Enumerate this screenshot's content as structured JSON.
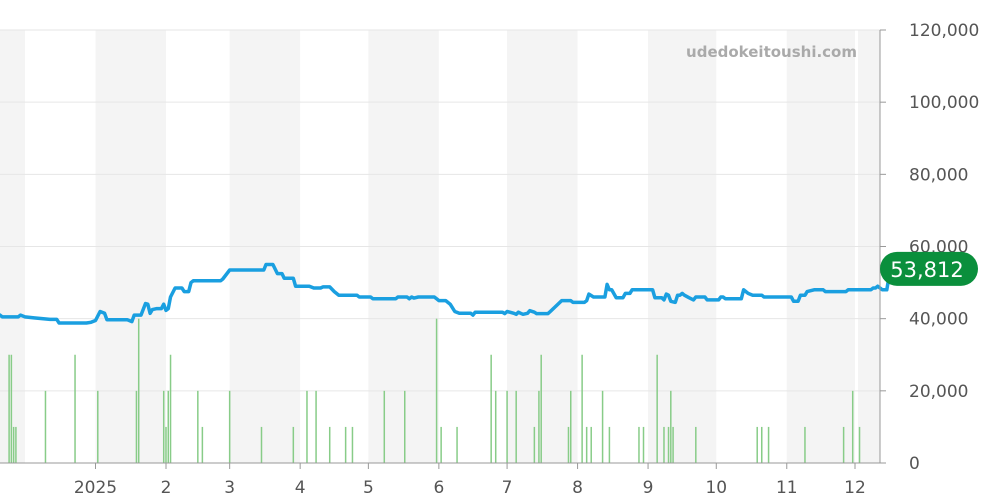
{
  "watermark": "udedokeitoushi.com",
  "current_value_label": "53,812",
  "colors": {
    "price_line": "#1a9fe0",
    "volume_bars": "#88cc88",
    "badge": "#0a8f3c",
    "band": "#f4f4f4",
    "grid": "#e6e6e6"
  },
  "chart_data": {
    "type": "line",
    "title": "",
    "xlabel": "",
    "ylabel": "",
    "ylim": [
      0,
      120000
    ],
    "yticks": [
      0,
      20000,
      40000,
      60000,
      80000,
      100000,
      120000
    ],
    "ytick_labels": [
      "0",
      "20,000",
      "40,000",
      "60,000",
      "80,000",
      "100,000",
      "120,000"
    ],
    "y_axis_position": "right",
    "grid": true,
    "xlim": [
      "2024-11-20",
      "2025-12-12"
    ],
    "x_ticks": [
      {
        "date": "2025-01-01",
        "label": "2025"
      },
      {
        "date": "2025-02-01",
        "label": "2"
      },
      {
        "date": "2025-03-01",
        "label": "3"
      },
      {
        "date": "2025-04-01",
        "label": "4"
      },
      {
        "date": "2025-05-01",
        "label": "5"
      },
      {
        "date": "2025-06-01",
        "label": "6"
      },
      {
        "date": "2025-07-01",
        "label": "7"
      },
      {
        "date": "2025-08-01",
        "label": "8"
      },
      {
        "date": "2025-09-01",
        "label": "9"
      },
      {
        "date": "2025-10-01",
        "label": "10"
      },
      {
        "date": "2025-11-01",
        "label": "11"
      },
      {
        "date": "2025-12-01",
        "label": "12"
      }
    ],
    "current_value": 53812,
    "series": [
      {
        "kind": "line",
        "points": [
          [
            "2024-11-20",
            41000
          ],
          [
            "2024-11-21",
            40500
          ],
          [
            "2024-11-28",
            40500
          ],
          [
            "2024-11-29",
            41000
          ],
          [
            "2024-12-01",
            40500
          ],
          [
            "2024-12-05",
            40200
          ],
          [
            "2024-12-12",
            39800
          ],
          [
            "2024-12-15",
            39800
          ],
          [
            "2024-12-16",
            38800
          ],
          [
            "2024-12-28",
            38800
          ],
          [
            "2024-12-30",
            39000
          ],
          [
            "2025-01-01",
            39500
          ],
          [
            "2025-01-03",
            42000
          ],
          [
            "2025-01-05",
            41500
          ],
          [
            "2025-01-06",
            39700
          ],
          [
            "2025-01-15",
            39700
          ],
          [
            "2025-01-17",
            39200
          ],
          [
            "2025-01-18",
            41000
          ],
          [
            "2025-01-21",
            41000
          ],
          [
            "2025-01-23",
            44200
          ],
          [
            "2025-01-24",
            44000
          ],
          [
            "2025-01-25",
            41500
          ],
          [
            "2025-01-26",
            42500
          ],
          [
            "2025-01-28",
            42800
          ],
          [
            "2025-01-30",
            42800
          ],
          [
            "2025-01-31",
            44000
          ],
          [
            "2025-02-01",
            42300
          ],
          [
            "2025-02-02",
            42800
          ],
          [
            "2025-02-03",
            46000
          ],
          [
            "2025-02-05",
            48500
          ],
          [
            "2025-02-08",
            48500
          ],
          [
            "2025-02-09",
            47500
          ],
          [
            "2025-02-11",
            47500
          ],
          [
            "2025-02-12",
            50000
          ],
          [
            "2025-02-13",
            50500
          ],
          [
            "2025-02-25",
            50500
          ],
          [
            "2025-02-26",
            51000
          ],
          [
            "2025-03-01",
            53500
          ],
          [
            "2025-03-16",
            53500
          ],
          [
            "2025-03-17",
            55000
          ],
          [
            "2025-03-20",
            55000
          ],
          [
            "2025-03-22",
            52500
          ],
          [
            "2025-03-24",
            52500
          ],
          [
            "2025-03-25",
            51200
          ],
          [
            "2025-03-29",
            51200
          ],
          [
            "2025-03-30",
            49000
          ],
          [
            "2025-04-05",
            49000
          ],
          [
            "2025-04-07",
            48500
          ],
          [
            "2025-04-10",
            48500
          ],
          [
            "2025-04-11",
            48800
          ],
          [
            "2025-04-14",
            48800
          ],
          [
            "2025-04-16",
            47500
          ],
          [
            "2025-04-18",
            46500
          ],
          [
            "2025-04-26",
            46500
          ],
          [
            "2025-04-27",
            46000
          ],
          [
            "2025-05-02",
            46000
          ],
          [
            "2025-05-03",
            45500
          ],
          [
            "2025-05-13",
            45500
          ],
          [
            "2025-05-14",
            46000
          ],
          [
            "2025-05-18",
            46000
          ],
          [
            "2025-05-19",
            45500
          ],
          [
            "2025-05-20",
            46000
          ],
          [
            "2025-05-21",
            45700
          ],
          [
            "2025-05-23",
            46000
          ],
          [
            "2025-05-30",
            46000
          ],
          [
            "2025-05-31",
            45500
          ],
          [
            "2025-06-01",
            45000
          ],
          [
            "2025-06-04",
            45000
          ],
          [
            "2025-06-06",
            44000
          ],
          [
            "2025-06-08",
            42000
          ],
          [
            "2025-06-10",
            41500
          ],
          [
            "2025-06-15",
            41500
          ],
          [
            "2025-06-16",
            41000
          ],
          [
            "2025-06-17",
            41800
          ],
          [
            "2025-06-29",
            41800
          ],
          [
            "2025-06-30",
            41400
          ],
          [
            "2025-07-01",
            42000
          ],
          [
            "2025-07-04",
            41500
          ],
          [
            "2025-07-05",
            41200
          ],
          [
            "2025-07-06",
            41800
          ],
          [
            "2025-07-07",
            41500
          ],
          [
            "2025-07-08",
            41200
          ],
          [
            "2025-07-10",
            41500
          ],
          [
            "2025-07-11",
            42200
          ],
          [
            "2025-07-13",
            41800
          ],
          [
            "2025-07-14",
            41400
          ],
          [
            "2025-07-19",
            41400
          ],
          [
            "2025-07-20",
            42000
          ],
          [
            "2025-07-25",
            45000
          ],
          [
            "2025-07-29",
            45000
          ],
          [
            "2025-07-30",
            44500
          ],
          [
            "2025-08-04",
            44500
          ],
          [
            "2025-08-05",
            45000
          ],
          [
            "2025-08-06",
            46800
          ],
          [
            "2025-08-08",
            46000
          ],
          [
            "2025-08-13",
            46000
          ],
          [
            "2025-08-14",
            49500
          ],
          [
            "2025-08-15",
            48000
          ],
          [
            "2025-08-16",
            48000
          ],
          [
            "2025-08-18",
            45800
          ],
          [
            "2025-08-21",
            45800
          ],
          [
            "2025-08-22",
            47000
          ],
          [
            "2025-08-24",
            47000
          ],
          [
            "2025-08-25",
            48000
          ],
          [
            "2025-09-03",
            48000
          ],
          [
            "2025-09-04",
            45800
          ],
          [
            "2025-09-07",
            45800
          ],
          [
            "2025-09-08",
            45200
          ],
          [
            "2025-09-09",
            46800
          ],
          [
            "2025-09-10",
            46500
          ],
          [
            "2025-09-11",
            44800
          ],
          [
            "2025-09-13",
            44500
          ],
          [
            "2025-09-14",
            46500
          ],
          [
            "2025-09-15",
            46500
          ],
          [
            "2025-09-16",
            47000
          ],
          [
            "2025-09-17",
            46500
          ],
          [
            "2025-09-19",
            45800
          ],
          [
            "2025-09-21",
            45200
          ],
          [
            "2025-09-22",
            46000
          ],
          [
            "2025-09-26",
            46000
          ],
          [
            "2025-09-27",
            45200
          ],
          [
            "2025-10-02",
            45200
          ],
          [
            "2025-10-03",
            46000
          ],
          [
            "2025-10-04",
            46000
          ],
          [
            "2025-10-05",
            45500
          ],
          [
            "2025-10-12",
            45500
          ],
          [
            "2025-10-13",
            48000
          ],
          [
            "2025-10-15",
            47000
          ],
          [
            "2025-10-17",
            46500
          ],
          [
            "2025-10-21",
            46500
          ],
          [
            "2025-10-22",
            46000
          ],
          [
            "2025-11-03",
            46000
          ],
          [
            "2025-11-04",
            44800
          ],
          [
            "2025-11-06",
            44800
          ],
          [
            "2025-11-07",
            46500
          ],
          [
            "2025-11-09",
            46500
          ],
          [
            "2025-11-10",
            47500
          ],
          [
            "2025-11-13",
            48000
          ],
          [
            "2025-11-17",
            48000
          ],
          [
            "2025-11-18",
            47500
          ],
          [
            "2025-11-27",
            47500
          ],
          [
            "2025-11-28",
            48000
          ],
          [
            "2025-12-08",
            48000
          ],
          [
            "2025-12-09",
            48500
          ],
          [
            "2025-12-10",
            48500
          ],
          [
            "2025-12-11",
            49000
          ],
          [
            "2025-12-13",
            48000
          ],
          [
            "2025-12-15",
            48000
          ],
          [
            "2025-12-16",
            51800
          ],
          [
            "2025-12-17",
            51800
          ],
          [
            "2025-12-18",
            53800
          ],
          [
            "2025-12-19",
            53812
          ]
        ]
      },
      {
        "kind": "volume_bars",
        "points": [
          [
            "2024-11-24",
            30000
          ],
          [
            "2024-11-25",
            30000
          ],
          [
            "2024-11-26",
            10000
          ],
          [
            "2024-11-27",
            10000
          ],
          [
            "2024-12-10",
            20000
          ],
          [
            "2024-12-23",
            30000
          ],
          [
            "2025-01-02",
            20000
          ],
          [
            "2025-01-19",
            20000
          ],
          [
            "2025-01-20",
            40000
          ],
          [
            "2025-01-31",
            20000
          ],
          [
            "2025-02-01",
            10000
          ],
          [
            "2025-02-02",
            20000
          ],
          [
            "2025-02-03",
            30000
          ],
          [
            "2025-02-15",
            20000
          ],
          [
            "2025-02-17",
            10000
          ],
          [
            "2025-03-01",
            20000
          ],
          [
            "2025-03-15",
            10000
          ],
          [
            "2025-03-29",
            10000
          ],
          [
            "2025-04-04",
            20000
          ],
          [
            "2025-04-08",
            20000
          ],
          [
            "2025-04-14",
            10000
          ],
          [
            "2025-04-21",
            10000
          ],
          [
            "2025-04-24",
            10000
          ],
          [
            "2025-05-08",
            20000
          ],
          [
            "2025-05-17",
            20000
          ],
          [
            "2025-05-31",
            40000
          ],
          [
            "2025-06-02",
            10000
          ],
          [
            "2025-06-09",
            10000
          ],
          [
            "2025-06-24",
            30000
          ],
          [
            "2025-06-26",
            20000
          ],
          [
            "2025-07-01",
            20000
          ],
          [
            "2025-07-05",
            20000
          ],
          [
            "2025-07-13",
            10000
          ],
          [
            "2025-07-15",
            20000
          ],
          [
            "2025-07-16",
            30000
          ],
          [
            "2025-07-28",
            10000
          ],
          [
            "2025-07-29",
            20000
          ],
          [
            "2025-08-03",
            30000
          ],
          [
            "2025-08-05",
            10000
          ],
          [
            "2025-08-07",
            10000
          ],
          [
            "2025-08-12",
            20000
          ],
          [
            "2025-08-15",
            10000
          ],
          [
            "2025-08-28",
            10000
          ],
          [
            "2025-08-30",
            10000
          ],
          [
            "2025-09-05",
            30000
          ],
          [
            "2025-09-08",
            10000
          ],
          [
            "2025-09-10",
            10000
          ],
          [
            "2025-09-11",
            20000
          ],
          [
            "2025-09-12",
            10000
          ],
          [
            "2025-09-22",
            10000
          ],
          [
            "2025-10-19",
            10000
          ],
          [
            "2025-10-21",
            10000
          ],
          [
            "2025-10-24",
            10000
          ],
          [
            "2025-11-09",
            10000
          ],
          [
            "2025-11-26",
            10000
          ],
          [
            "2025-11-30",
            20000
          ],
          [
            "2025-12-03",
            10000
          ]
        ]
      }
    ]
  }
}
